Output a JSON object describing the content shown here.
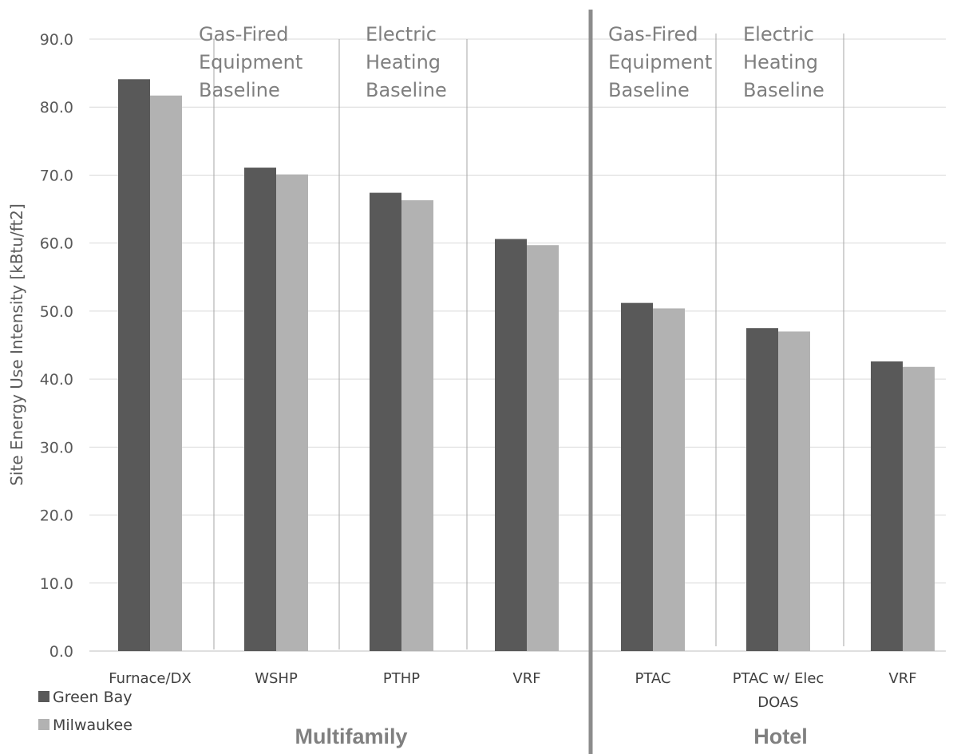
{
  "chart_data": {
    "type": "bar",
    "ylabel": "Site Energy Use Intensity [kBtu/ft2]",
    "ylim": [
      0,
      90
    ],
    "ytick_step": 10,
    "ytick_labels": [
      "0.0",
      "10.0",
      "20.0",
      "30.0",
      "40.0",
      "50.0",
      "60.0",
      "70.0",
      "80.0",
      "90.0"
    ],
    "grid": true,
    "legend_position": "bottom-left",
    "categories": [
      "Furnace/DX",
      "WSHP",
      "PTHP",
      "VRF",
      "PTAC",
      "PTAC w/ Elec DOAS",
      "VRF"
    ],
    "category_lines": [
      [
        "Furnace/DX"
      ],
      [
        "WSHP"
      ],
      [
        "PTHP"
      ],
      [
        "VRF"
      ],
      [
        "PTAC"
      ],
      [
        "PTAC w/ Elec",
        "DOAS"
      ],
      [
        "VRF"
      ]
    ],
    "series": [
      {
        "name": "Green Bay",
        "color": "#595959",
        "values": [
          84.1,
          71.1,
          67.4,
          60.6,
          51.2,
          47.5,
          42.6
        ]
      },
      {
        "name": "Milwaukee",
        "color": "#b2b2b2",
        "values": [
          81.7,
          70.1,
          66.3,
          59.7,
          50.4,
          47.0,
          41.8
        ]
      }
    ],
    "groups": [
      {
        "label": "Multifamily",
        "categories": [
          0,
          1,
          2,
          3
        ]
      },
      {
        "label": "Hotel",
        "categories": [
          4,
          5,
          6
        ]
      }
    ],
    "annotations": [
      {
        "lines": [
          "Gas-Fired",
          "Equipment",
          "Baseline"
        ],
        "at_category": 1
      },
      {
        "lines": [
          "Electric",
          "Heating",
          "Baseline"
        ],
        "at_category": 2
      },
      {
        "lines": [
          "Gas-Fired",
          "Equipment",
          "Baseline"
        ],
        "at_category": 4
      },
      {
        "lines": [
          "Electric",
          "Heating",
          "Baseline"
        ],
        "at_category": 5
      }
    ]
  }
}
